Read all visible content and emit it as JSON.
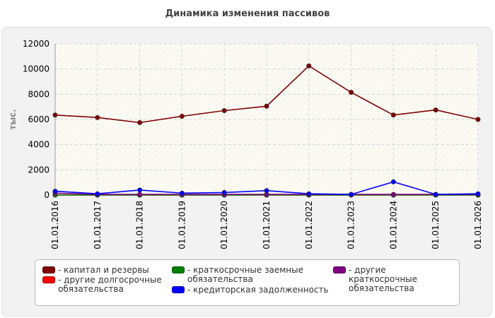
{
  "chart_data": {
    "type": "line",
    "title": "Динамика изменения пассивов",
    "ylabel": "тыс.",
    "xlabel": "",
    "ylim": [
      0,
      12000
    ],
    "yticks": [
      0,
      2000,
      4000,
      6000,
      8000,
      10000,
      12000
    ],
    "grid": true,
    "legend_position": "bottom",
    "categories": [
      "01.01.2016",
      "01.01.2017",
      "01.01.2018",
      "01.01.2019",
      "01.01.2020",
      "01.01.2021",
      "01.01.2022",
      "01.01.2023",
      "01.01.2024",
      "01.01.2025",
      "01.01.2026"
    ],
    "series": [
      {
        "name": "- капитал и резервы",
        "color": "#800000",
        "values": [
          6350,
          6150,
          5750,
          6250,
          6700,
          7050,
          10250,
          8150,
          6350,
          6750,
          6000
        ]
      },
      {
        "name": "- другие долгосрочные обязательства",
        "color": "#ff0000",
        "values": [
          0,
          0,
          0,
          0,
          0,
          0,
          0,
          0,
          0,
          0,
          0
        ]
      },
      {
        "name": "- краткосрочные заемные обязательства",
        "color": "#008000",
        "values": [
          0,
          0,
          0,
          0,
          0,
          0,
          0,
          0,
          0,
          0,
          0
        ]
      },
      {
        "name": "- кредиторская задолженность",
        "color": "#0000ff",
        "values": [
          300,
          100,
          400,
          150,
          200,
          350,
          100,
          50,
          1050,
          50,
          100
        ]
      },
      {
        "name": "- другие краткосрочные обязательства",
        "color": "#800080",
        "values": [
          150,
          50,
          50,
          50,
          50,
          50,
          50,
          50,
          50,
          50,
          50
        ]
      }
    ]
  }
}
